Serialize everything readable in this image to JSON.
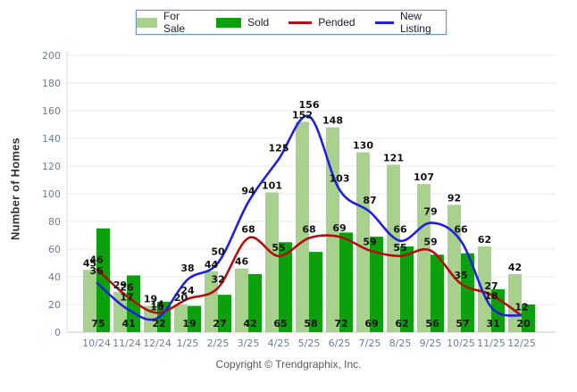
{
  "legend": {
    "items": [
      {
        "label": "For Sale",
        "marker": "swatch",
        "color": "#a9d18e"
      },
      {
        "label": "Sold",
        "marker": "swatch",
        "color": "#0ca00c"
      },
      {
        "label": "Pended",
        "marker": "line",
        "color": "#b20f0f"
      },
      {
        "label": "New Listing",
        "marker": "line",
        "color": "#2020dd"
      }
    ]
  },
  "chart_data": {
    "type": "bar",
    "subtype": "grouped bars with smoothed line overlays",
    "categories": [
      "10/24",
      "11/24",
      "12/24",
      "1/25",
      "2/25",
      "3/25",
      "4/25",
      "5/25",
      "6/25",
      "7/25",
      "8/25",
      "9/25",
      "10/25",
      "11/25",
      "12/25"
    ],
    "series": [
      {
        "name": "For Sale",
        "type": "bar",
        "color": "#a9d18e",
        "values": [
          45,
          29,
          19,
          20,
          44,
          46,
          101,
          152,
          148,
          130,
          121,
          107,
          92,
          62,
          42
        ]
      },
      {
        "name": "Sold",
        "type": "bar",
        "color": "#0ca00c",
        "values": [
          75,
          41,
          22,
          19,
          27,
          42,
          65,
          58,
          72,
          69,
          62,
          56,
          57,
          31,
          20
        ]
      },
      {
        "name": "Pended",
        "type": "line",
        "color": "#b20f0f",
        "values": [
          46,
          26,
          14,
          24,
          32,
          68,
          55,
          68,
          69,
          59,
          55,
          59,
          35,
          27,
          12
        ]
      },
      {
        "name": "New Listing",
        "type": "line",
        "color": "#2020dd",
        "values": [
          36,
          17,
          10,
          38,
          50,
          94,
          125,
          156,
          103,
          87,
          66,
          79,
          66,
          18,
          12
        ]
      }
    ],
    "title": "",
    "xlabel": "",
    "ylabel": "Number of Homes",
    "ylim": [
      0,
      200
    ],
    "ytick_step": 20,
    "grid": true,
    "legend_position": "top"
  },
  "footer": {
    "copyright": "Copyright © Trendgraphix, Inc."
  }
}
